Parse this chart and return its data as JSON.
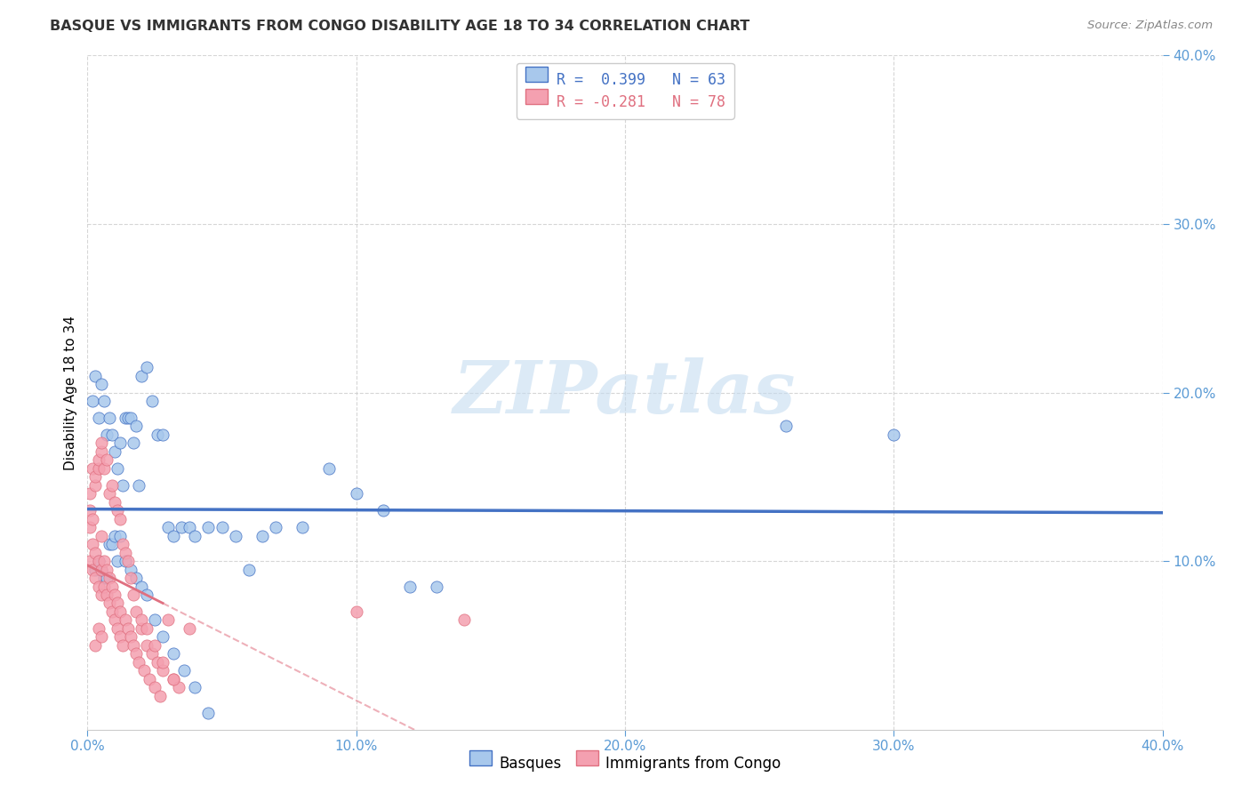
{
  "title": "BASQUE VS IMMIGRANTS FROM CONGO DISABILITY AGE 18 TO 34 CORRELATION CHART",
  "source": "Source: ZipAtlas.com",
  "ylabel": "Disability Age 18 to 34",
  "xlim": [
    0.0,
    0.4
  ],
  "ylim": [
    0.0,
    0.4
  ],
  "xticks": [
    0.0,
    0.1,
    0.2,
    0.3,
    0.4
  ],
  "yticks": [
    0.1,
    0.2,
    0.3,
    0.4
  ],
  "color_blue": "#A8C8EC",
  "color_pink": "#F4A0B0",
  "line_blue": "#4472C4",
  "line_pink": "#E07080",
  "watermark_color": "#C5DCF0",
  "R_blue": 0.399,
  "N_blue": 63,
  "R_pink": -0.281,
  "N_pink": 78,
  "legend_label_blue": "Basques",
  "legend_label_pink": "Immigrants from Congo",
  "basque_x": [
    0.002,
    0.003,
    0.004,
    0.005,
    0.006,
    0.007,
    0.008,
    0.009,
    0.01,
    0.011,
    0.012,
    0.013,
    0.014,
    0.015,
    0.016,
    0.017,
    0.018,
    0.019,
    0.02,
    0.022,
    0.024,
    0.026,
    0.028,
    0.03,
    0.032,
    0.035,
    0.038,
    0.04,
    0.045,
    0.05,
    0.055,
    0.06,
    0.065,
    0.07,
    0.08,
    0.09,
    0.1,
    0.11,
    0.12,
    0.13,
    0.003,
    0.004,
    0.005,
    0.006,
    0.007,
    0.008,
    0.009,
    0.01,
    0.011,
    0.012,
    0.014,
    0.016,
    0.018,
    0.02,
    0.022,
    0.025,
    0.028,
    0.032,
    0.036,
    0.04,
    0.045,
    0.26,
    0.3
  ],
  "basque_y": [
    0.195,
    0.21,
    0.185,
    0.205,
    0.195,
    0.175,
    0.185,
    0.175,
    0.165,
    0.155,
    0.17,
    0.145,
    0.185,
    0.185,
    0.185,
    0.17,
    0.18,
    0.145,
    0.21,
    0.215,
    0.195,
    0.175,
    0.175,
    0.12,
    0.115,
    0.12,
    0.12,
    0.115,
    0.12,
    0.12,
    0.115,
    0.095,
    0.115,
    0.12,
    0.12,
    0.155,
    0.14,
    0.13,
    0.085,
    0.085,
    0.095,
    0.1,
    0.095,
    0.09,
    0.09,
    0.11,
    0.11,
    0.115,
    0.1,
    0.115,
    0.1,
    0.095,
    0.09,
    0.085,
    0.08,
    0.065,
    0.055,
    0.045,
    0.035,
    0.025,
    0.01,
    0.18,
    0.175
  ],
  "congo_x": [
    0.001,
    0.001,
    0.002,
    0.002,
    0.003,
    0.003,
    0.004,
    0.004,
    0.005,
    0.005,
    0.005,
    0.006,
    0.006,
    0.007,
    0.007,
    0.008,
    0.008,
    0.009,
    0.009,
    0.01,
    0.01,
    0.011,
    0.011,
    0.012,
    0.012,
    0.013,
    0.014,
    0.015,
    0.016,
    0.017,
    0.018,
    0.019,
    0.02,
    0.021,
    0.022,
    0.023,
    0.024,
    0.025,
    0.026,
    0.027,
    0.028,
    0.03,
    0.032,
    0.034,
    0.001,
    0.001,
    0.002,
    0.002,
    0.003,
    0.003,
    0.004,
    0.004,
    0.005,
    0.005,
    0.006,
    0.007,
    0.008,
    0.009,
    0.01,
    0.011,
    0.012,
    0.013,
    0.014,
    0.015,
    0.016,
    0.017,
    0.018,
    0.02,
    0.022,
    0.025,
    0.028,
    0.032,
    0.038,
    0.1,
    0.14,
    0.003,
    0.004,
    0.005
  ],
  "congo_y": [
    0.1,
    0.12,
    0.095,
    0.11,
    0.09,
    0.105,
    0.085,
    0.1,
    0.08,
    0.095,
    0.115,
    0.085,
    0.1,
    0.08,
    0.095,
    0.075,
    0.09,
    0.07,
    0.085,
    0.065,
    0.08,
    0.06,
    0.075,
    0.055,
    0.07,
    0.05,
    0.065,
    0.06,
    0.055,
    0.05,
    0.045,
    0.04,
    0.06,
    0.035,
    0.05,
    0.03,
    0.045,
    0.025,
    0.04,
    0.02,
    0.035,
    0.065,
    0.03,
    0.025,
    0.13,
    0.14,
    0.125,
    0.155,
    0.145,
    0.15,
    0.155,
    0.16,
    0.165,
    0.17,
    0.155,
    0.16,
    0.14,
    0.145,
    0.135,
    0.13,
    0.125,
    0.11,
    0.105,
    0.1,
    0.09,
    0.08,
    0.07,
    0.065,
    0.06,
    0.05,
    0.04,
    0.03,
    0.06,
    0.07,
    0.065,
    0.05,
    0.06,
    0.055
  ]
}
